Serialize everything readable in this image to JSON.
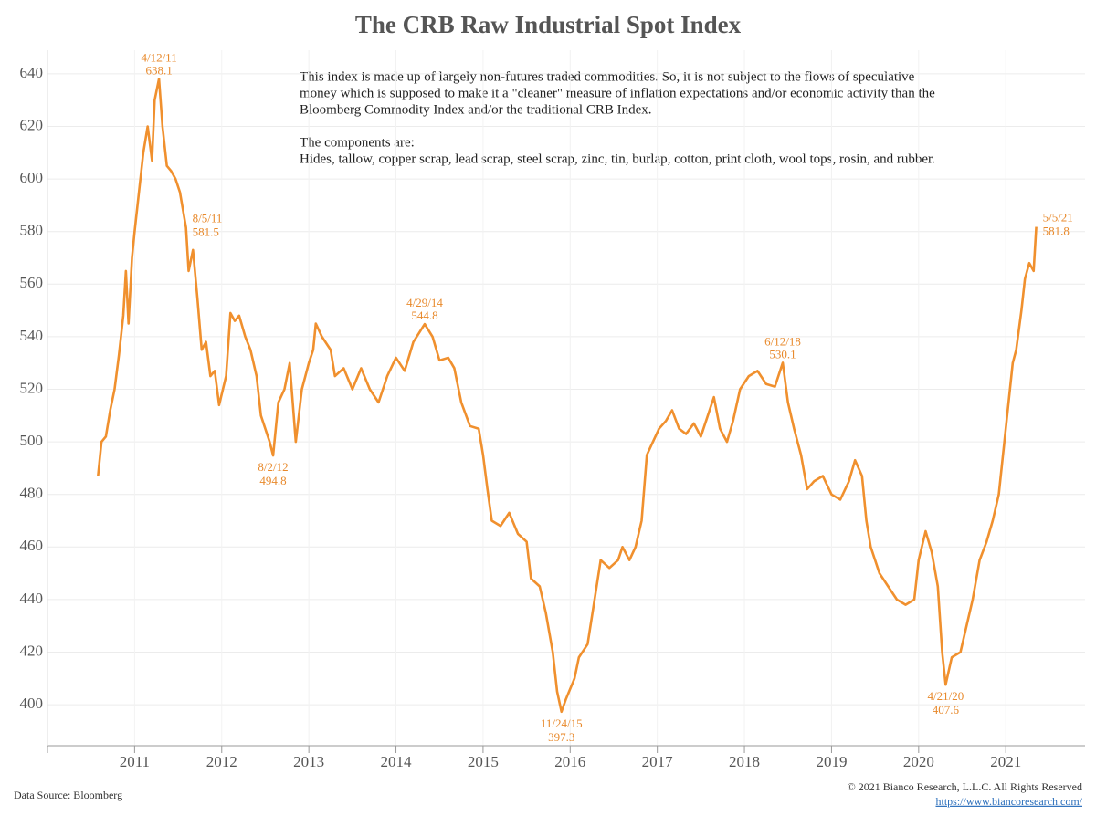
{
  "chart_data": {
    "type": "line",
    "title": "The CRB Raw Industrial Spot Index",
    "description": [
      "This index is made up of largely non-futures traded commodities. So, it is not subject to the flows of speculative",
      "money which is supposed to make it a \"cleaner\" measure of inflation expectations and/or economic activity than the",
      "Bloomberg Commodity Index and/or the traditional CRB Index.",
      "The components are:",
      "Hides, tallow, copper scrap, lead scrap, steel scrap, zinc, tin, burlap, cotton, print cloth, wool tops, rosin, and rubber."
    ],
    "source": "Data Source: Bloomberg",
    "copyright": "© 2021 Bianco Research, L.L.C. All Rights Reserved",
    "url": "https://www.biancoresearch.com/",
    "grid": true,
    "xlim": [
      2010,
      2021.91
    ],
    "xticks": [
      2011,
      2012,
      2013,
      2014,
      2015,
      2016,
      2017,
      2018,
      2019,
      2020,
      2021
    ],
    "ylim": [
      384.4,
      649
    ],
    "yticks": [
      400,
      420,
      440,
      460,
      480,
      500,
      520,
      540,
      560,
      580,
      600,
      620,
      640
    ],
    "x": [
      2010.58,
      2010.62,
      2010.67,
      2010.72,
      2010.77,
      2010.82,
      2010.87,
      2010.9,
      2010.93,
      2010.97,
      2011.0,
      2011.05,
      2011.1,
      2011.15,
      2011.2,
      2011.23,
      2011.28,
      2011.32,
      2011.37,
      2011.42,
      2011.47,
      2011.52,
      2011.59,
      2011.62,
      2011.67,
      2011.72,
      2011.77,
      2011.82,
      2011.87,
      2011.92,
      2011.97,
      2012.05,
      2012.1,
      2012.15,
      2012.2,
      2012.27,
      2012.33,
      2012.4,
      2012.45,
      2012.5,
      2012.55,
      2012.59,
      2012.65,
      2012.72,
      2012.78,
      2012.85,
      2012.92,
      2013.0,
      2013.05,
      2013.08,
      2013.15,
      2013.25,
      2013.3,
      2013.4,
      2013.5,
      2013.6,
      2013.7,
      2013.8,
      2013.9,
      2014.0,
      2014.1,
      2014.2,
      2014.33,
      2014.42,
      2014.5,
      2014.6,
      2014.67,
      2014.75,
      2014.85,
      2014.95,
      2015.0,
      2015.05,
      2015.1,
      2015.2,
      2015.3,
      2015.4,
      2015.5,
      2015.55,
      2015.65,
      2015.72,
      2015.8,
      2015.85,
      2015.9,
      2015.95,
      2016.05,
      2016.1,
      2016.2,
      2016.28,
      2016.35,
      2016.45,
      2016.55,
      2016.6,
      2016.68,
      2016.75,
      2016.82,
      2016.88,
      2016.95,
      2017.02,
      2017.1,
      2017.17,
      2017.25,
      2017.33,
      2017.42,
      2017.5,
      2017.58,
      2017.65,
      2017.72,
      2017.8,
      2017.87,
      2017.95,
      2018.05,
      2018.15,
      2018.25,
      2018.35,
      2018.44,
      2018.5,
      2018.57,
      2018.65,
      2018.72,
      2018.8,
      2018.9,
      2019.0,
      2019.1,
      2019.2,
      2019.27,
      2019.35,
      2019.4,
      2019.45,
      2019.55,
      2019.65,
      2019.75,
      2019.85,
      2019.95,
      2020.0,
      2020.08,
      2020.15,
      2020.22,
      2020.27,
      2020.31,
      2020.38,
      2020.48,
      2020.55,
      2020.62,
      2020.7,
      2020.78,
      2020.85,
      2020.92,
      2021.0,
      2021.08,
      2021.12,
      2021.18,
      2021.22,
      2021.27,
      2021.32,
      2021.35
    ],
    "series": [
      {
        "name": "CRB Raw Industrial Spot Index",
        "color": "#f0902e",
        "values": [
          487,
          500,
          502,
          512,
          520,
          533,
          548,
          565,
          545,
          570,
          580,
          595,
          610,
          620,
          607,
          630,
          638.1,
          620,
          605,
          603,
          600,
          595,
          581.5,
          565,
          573,
          555,
          535,
          538,
          525,
          527,
          514,
          525,
          549,
          546,
          548,
          540,
          535,
          525,
          510,
          505,
          500,
          494.8,
          515,
          520,
          530,
          500,
          520,
          530,
          535,
          545,
          540,
          535,
          525,
          528,
          520,
          528,
          520,
          515,
          525,
          532,
          527,
          538,
          544.8,
          540,
          531,
          532,
          528,
          515,
          506,
          505,
          495,
          482,
          470,
          468,
          473,
          465,
          462,
          448,
          445,
          435,
          420,
          405,
          397.3,
          402,
          410,
          418,
          423,
          440,
          455,
          452,
          455,
          460,
          455,
          460,
          470,
          495,
          500,
          505,
          508,
          512,
          505,
          503,
          507,
          502,
          510,
          517,
          505,
          500,
          508,
          520,
          525,
          527,
          522,
          521,
          530.1,
          515,
          505,
          495,
          482,
          485,
          487,
          480,
          478,
          485,
          493,
          487,
          470,
          460,
          450,
          445,
          440,
          438,
          440,
          455,
          466,
          458,
          445,
          420,
          407.6,
          418,
          420,
          430,
          440,
          455,
          462,
          470,
          480,
          505,
          530,
          535,
          550,
          562,
          568,
          565,
          581.8
        ]
      }
    ],
    "annotations": [
      {
        "date": "4/12/11",
        "value": 638.1
      },
      {
        "date": "8/5/11",
        "value": 581.5
      },
      {
        "date": "8/2/12",
        "value": 494.8
      },
      {
        "date": "4/29/14",
        "value": 544.8
      },
      {
        "date": "11/24/15",
        "value": 397.3
      },
      {
        "date": "6/12/18",
        "value": 530.1
      },
      {
        "date": "4/21/20",
        "value": 407.6
      },
      {
        "date": "5/5/21",
        "value": 581.8
      }
    ]
  }
}
